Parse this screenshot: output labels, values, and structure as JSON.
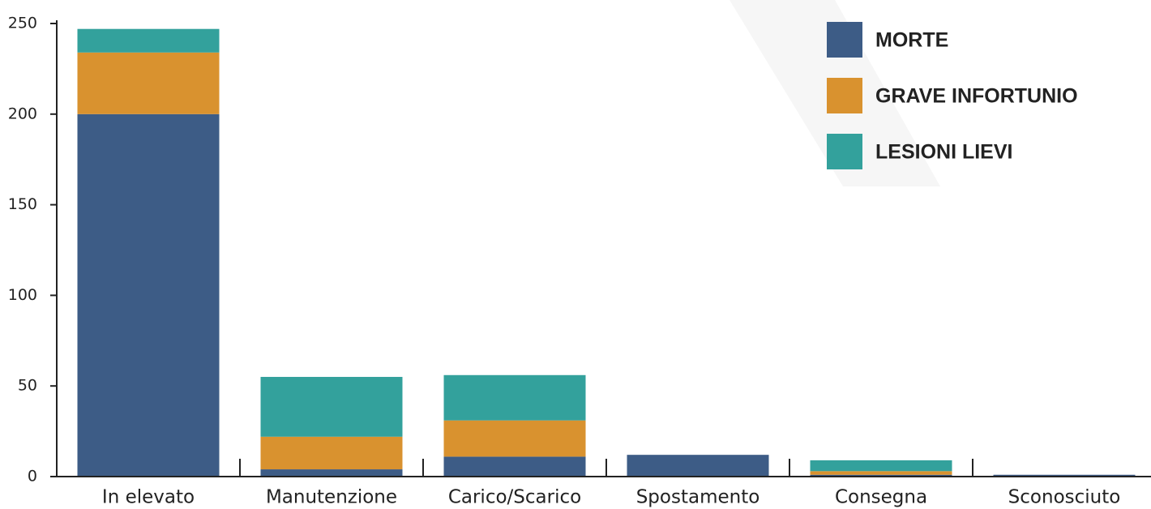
{
  "chart_data": {
    "type": "stacked_bar",
    "categories": [
      "In elevato",
      "Manutenzione",
      "Carico/Scarico",
      "Spostamento",
      "Consegna",
      "Sconosciuto"
    ],
    "series": [
      {
        "name": "MORTE",
        "color": "#3d5c86",
        "values": [
          200,
          4,
          11,
          12,
          1,
          1
        ]
      },
      {
        "name": "GRAVE INFORTUNIO",
        "color": "#d9922f",
        "values": [
          34,
          18,
          20,
          0,
          2,
          0
        ]
      },
      {
        "name": "LESIONI LIEVI",
        "color": "#33a19c",
        "values": [
          13,
          33,
          25,
          0,
          6,
          0
        ]
      }
    ],
    "ylim": [
      0,
      250
    ],
    "yticks": [
      0,
      50,
      100,
      150,
      200,
      250
    ],
    "legend": "upper right"
  }
}
